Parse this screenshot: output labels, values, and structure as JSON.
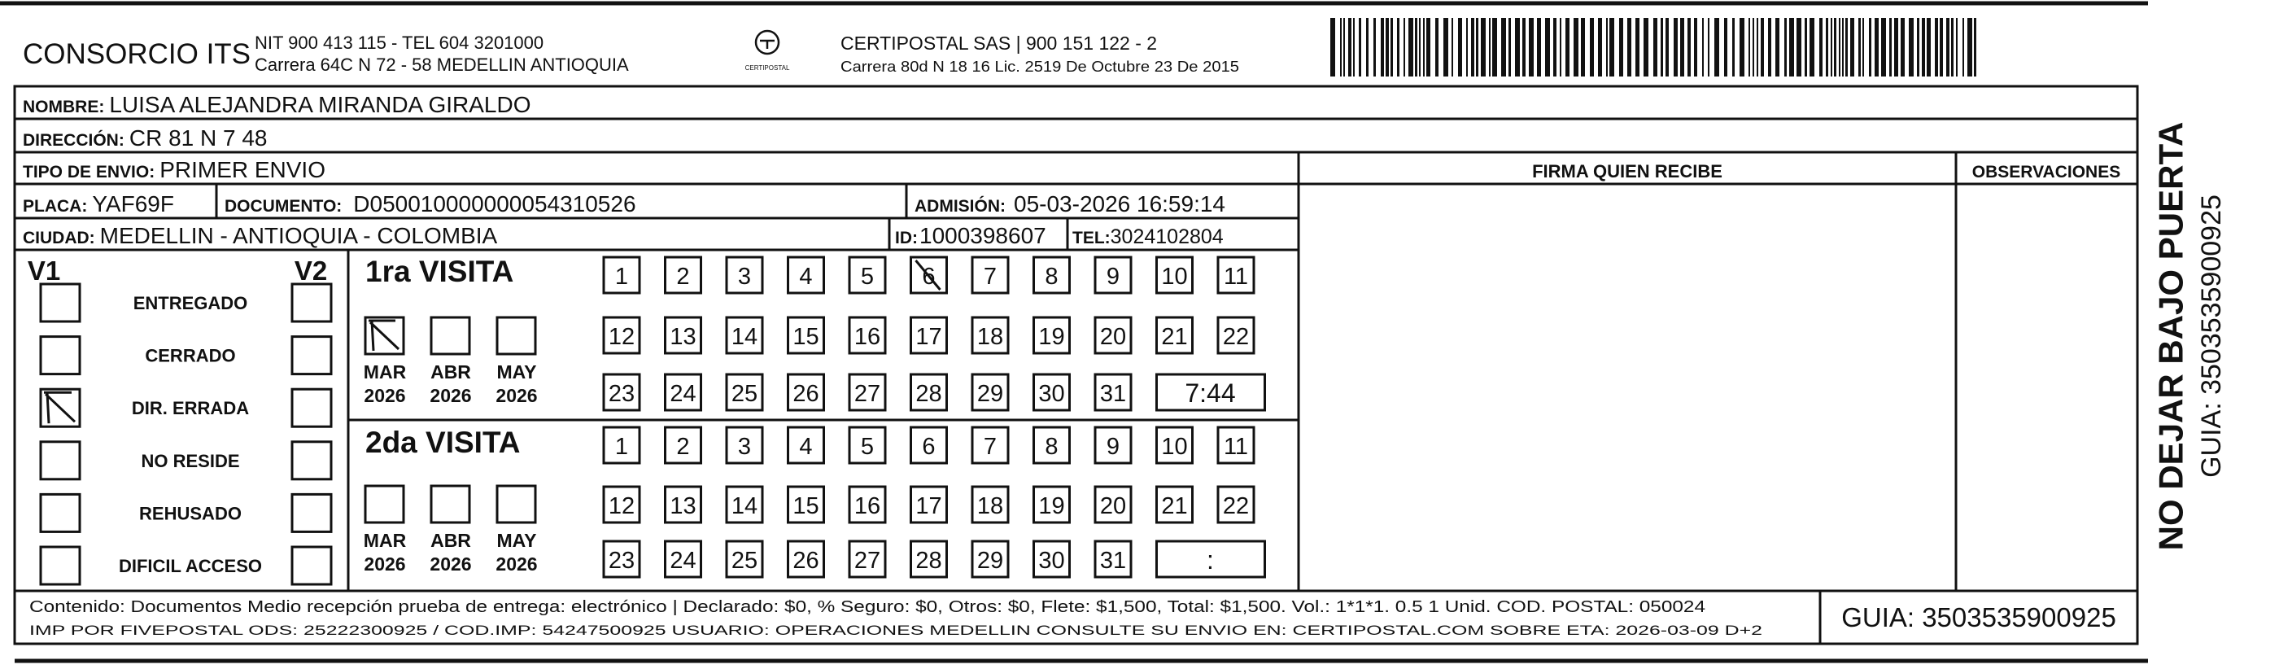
{
  "header": {
    "company": "CONSORCIO ITS",
    "nit": "NIT 900 413 115 - TEL 604 3201000",
    "address": "Carrera 64C N 72 - 58 MEDELLIN ANTIOQUIA",
    "logo_text": "CERTIPOSTAL",
    "carrier": "CERTIPOSTAL SAS | 900 151 122 - 2",
    "license": "Carrera 80d N 18 16 Lic. 2519 De Octubre 23 De 2015"
  },
  "recipient": {
    "name_label": "NOMBRE:",
    "name": "LUISA ALEJANDRA MIRANDA GIRALDO",
    "address_label": "DIRECCIÓN:",
    "address": "CR 81 N 7 48",
    "type_label": "TIPO DE ENVIO:",
    "type": "PRIMER ENVIO",
    "plate_label": "PLACA:",
    "plate": "YAF69F",
    "document_label": "DOCUMENTO:",
    "document": "D050010000000054310526",
    "admission_label": "ADMISIÓN:",
    "admission": "05-03-2026 16:59:14",
    "city_label": "CIUDAD:",
    "city": "MEDELLIN - ANTIOQUIA - COLOMBIA",
    "id_label": "ID:",
    "id": "1000398607",
    "tel_label": "TEL:",
    "tel": "3024102804"
  },
  "columns": {
    "signature": "FIRMA QUIEN RECIBE",
    "observations": "OBSERVACIONES"
  },
  "status": {
    "v1": "V1",
    "v2": "V2",
    "options": [
      {
        "label": "ENTREGADO",
        "v1_checked": false,
        "v2_checked": false
      },
      {
        "label": "CERRADO",
        "v1_checked": false,
        "v2_checked": false
      },
      {
        "label": "DIR. ERRADA",
        "v1_checked": true,
        "v2_checked": false
      },
      {
        "label": "NO RESIDE",
        "v1_checked": false,
        "v2_checked": false
      },
      {
        "label": "REHUSADO",
        "v1_checked": false,
        "v2_checked": false
      },
      {
        "label": "DIFICIL ACCESO",
        "v1_checked": false,
        "v2_checked": false
      }
    ]
  },
  "visits": [
    {
      "title": "1ra VISITA",
      "months": [
        {
          "month": "MAR",
          "year": "2026",
          "checked": true
        },
        {
          "month": "ABR",
          "year": "2026",
          "checked": false
        },
        {
          "month": "MAY",
          "year": "2026",
          "checked": false
        }
      ],
      "days": [
        1,
        2,
        3,
        4,
        5,
        6,
        7,
        8,
        9,
        10,
        11,
        12,
        13,
        14,
        15,
        16,
        17,
        18,
        19,
        20,
        21,
        22,
        23,
        24,
        25,
        26,
        27,
        28,
        29,
        30,
        31
      ],
      "crossed_days": [
        6
      ],
      "time": "7:44"
    },
    {
      "title": "2da VISITA",
      "months": [
        {
          "month": "MAR",
          "year": "2026",
          "checked": false
        },
        {
          "month": "ABR",
          "year": "2026",
          "checked": false
        },
        {
          "month": "MAY",
          "year": "2026",
          "checked": false
        }
      ],
      "days": [
        1,
        2,
        3,
        4,
        5,
        6,
        7,
        8,
        9,
        10,
        11,
        12,
        13,
        14,
        15,
        16,
        17,
        18,
        19,
        20,
        21,
        22,
        23,
        24,
        25,
        26,
        27,
        28,
        29,
        30,
        31
      ],
      "crossed_days": [],
      "time": ":"
    }
  ],
  "footer": {
    "content": "Contenido: Documentos Medio recepción prueba de entrega: electrónico | Declarado: $0, % Seguro: $0, Otros: $0, Flete: $1,500, Total: $1,500. Vol.: 1*1*1. 0.5  1 Unid. COD. POSTAL: 050024",
    "imprint": "IMP POR FIVEPOSTAL ODS: 25222300925 / COD.IMP: 54247500925 USUARIO: OPERACIONES MEDELLIN CONSULTE SU ENVIO EN: CERTIPOSTAL.COM SOBRE ETA: 2026-03-09 D+2",
    "guide": "GUIA: 3503535900925"
  },
  "side": {
    "notice": "NO DEJAR BAJO PUERTA",
    "guide": "GUIA: 3503535900925"
  }
}
